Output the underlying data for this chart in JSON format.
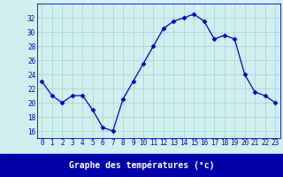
{
  "hours": [
    0,
    1,
    2,
    3,
    4,
    5,
    6,
    7,
    8,
    9,
    10,
    11,
    12,
    13,
    14,
    15,
    16,
    17,
    18,
    19,
    20,
    21,
    22,
    23
  ],
  "temperatures": [
    23,
    21,
    20,
    21,
    21,
    19,
    16.5,
    16,
    20.5,
    23,
    25.5,
    28,
    30.5,
    31.5,
    32,
    32.5,
    31.5,
    29,
    29.5,
    29,
    24,
    21.5,
    21,
    20
  ],
  "line_color": "#0000cc",
  "marker": "D",
  "marker_size": 2.5,
  "bg_color": "#cff0f0",
  "grid_color": "#aacece",
  "xlabel": "Graphe des températures (°c)",
  "xlabel_bg": "#0000aa",
  "xlabel_color": "#ffffff",
  "ylim": [
    15,
    34
  ],
  "yticks": [
    16,
    18,
    20,
    22,
    24,
    26,
    28,
    30,
    32
  ],
  "xtick_labels": [
    "0",
    "1",
    "2",
    "3",
    "4",
    "5",
    "6",
    "7",
    "8",
    "9",
    "1011",
    "1213",
    "1415",
    "1617",
    "1819",
    "2021",
    "2223"
  ],
  "spine_color": "#0000cc",
  "tick_fontsize": 5.5,
  "xlabel_fontsize": 7.0
}
